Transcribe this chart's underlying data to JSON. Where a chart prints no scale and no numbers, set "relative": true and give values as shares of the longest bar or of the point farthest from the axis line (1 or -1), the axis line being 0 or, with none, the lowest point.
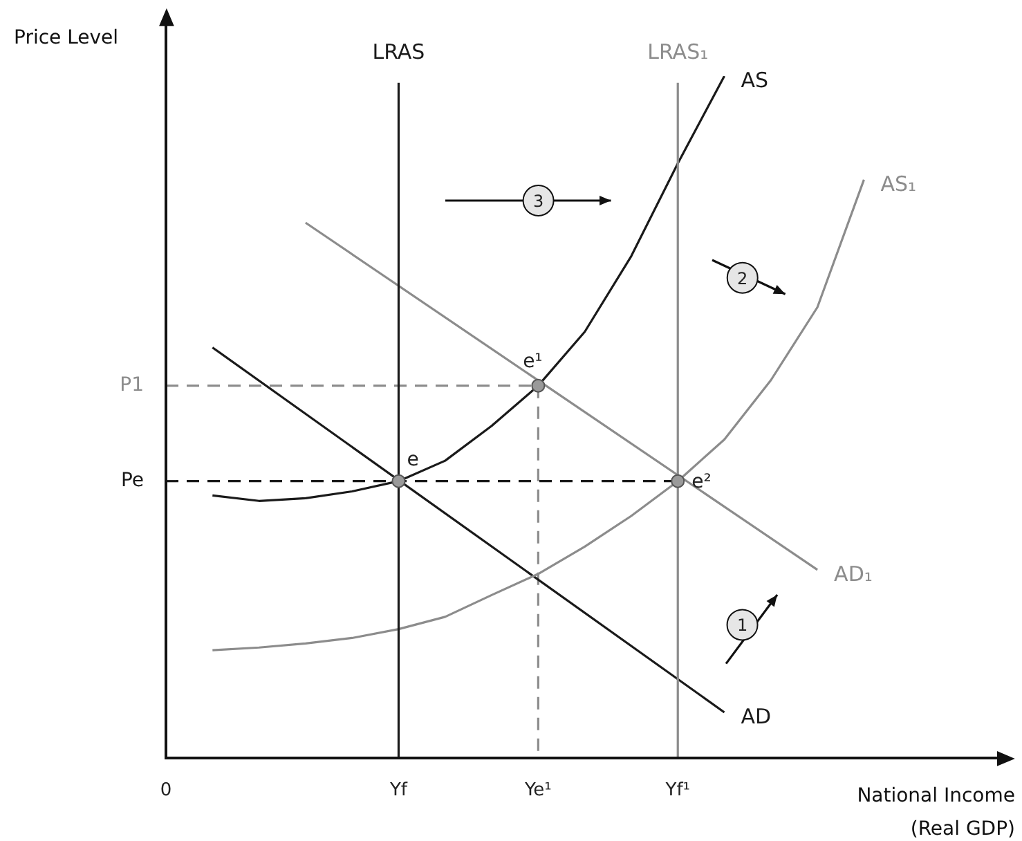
{
  "chart_data": {
    "type": "line",
    "xlabel": "National Income\n(Real GDP)",
    "ylabel": "Price Level",
    "relative": true,
    "categories": [
      "0",
      null,
      null,
      null,
      null,
      "Yf",
      null,
      null,
      "Ye¹",
      null,
      null,
      "Yf¹",
      null,
      null,
      null,
      null,
      null,
      null
    ],
    "series": [
      {
        "name": "LRAS",
        "color": "#1a1a1a",
        "x": [
          "Yf",
          "Yf"
        ],
        "values": [
          0,
          0.99
        ]
      },
      {
        "name": "LRAS₁",
        "color": "#8c8c8c",
        "x": [
          "Yf¹",
          "Yf¹"
        ],
        "values": [
          0,
          0.99
        ]
      },
      {
        "name": "AS",
        "color": "#1a1a1a",
        "values": [
          null,
          0.385,
          0.377,
          0.381,
          0.391,
          0.406,
          0.436,
          0.487,
          0.546,
          0.625,
          0.736,
          0.872,
          1,
          null,
          null,
          null,
          null,
          null
        ]
      },
      {
        "name": "AS₁",
        "color": "#8c8c8c",
        "values": [
          null,
          0.158,
          0.162,
          0.168,
          0.176,
          0.189,
          0.207,
          0.239,
          0.27,
          0.31,
          0.355,
          0.406,
          0.467,
          0.554,
          0.661,
          0.848,
          null,
          null
        ]
      },
      {
        "name": "AD",
        "color": "#1a1a1a",
        "values": [
          null,
          0.602,
          null,
          null,
          null,
          null,
          null,
          null,
          null,
          null,
          null,
          null,
          0.067,
          null,
          null,
          null,
          null,
          null
        ]
      },
      {
        "name": "AD₁",
        "color": "#8c8c8c",
        "values": [
          null,
          null,
          null,
          0.785,
          null,
          null,
          null,
          null,
          null,
          null,
          null,
          null,
          null,
          null,
          0.276,
          null,
          null,
          null
        ]
      },
      {
        "name": "P1",
        "color": "#8c8c8c",
        "line_style": "dashed",
        "values": [
          0.546,
          null,
          null,
          null,
          null,
          null,
          null,
          null,
          0.546,
          null,
          null,
          null,
          null,
          null,
          null,
          null,
          null,
          null
        ]
      },
      {
        "color": "#8c8c8c",
        "line_style": "dashed",
        "x": [
          "Ye¹",
          "Ye¹"
        ],
        "values": [
          0.546,
          0
        ]
      },
      {
        "name": "Pe",
        "color": "#1a1a1a",
        "line_style": "dashed",
        "values": [
          0.406,
          null,
          null,
          null,
          null,
          null,
          null,
          null,
          null,
          null,
          null,
          0.406,
          null,
          null,
          null,
          null,
          null,
          null
        ]
      },
      {
        "type": "scatter",
        "marker": "circle",
        "color": "#9a9a9a",
        "x": [
          "Yf",
          "Ye¹",
          "Yf¹"
        ],
        "values": [
          0.406,
          0.546,
          0.406
        ]
      }
    ],
    "annotations": [
      {
        "text": "e",
        "x": "Yf",
        "y": 0.406
      },
      {
        "text": "e¹",
        "x": "Ye¹",
        "y": 0.546
      },
      {
        "text": "e²",
        "x": "Yf¹",
        "y": 0.406
      },
      "1",
      "2",
      "3"
    ]
  }
}
